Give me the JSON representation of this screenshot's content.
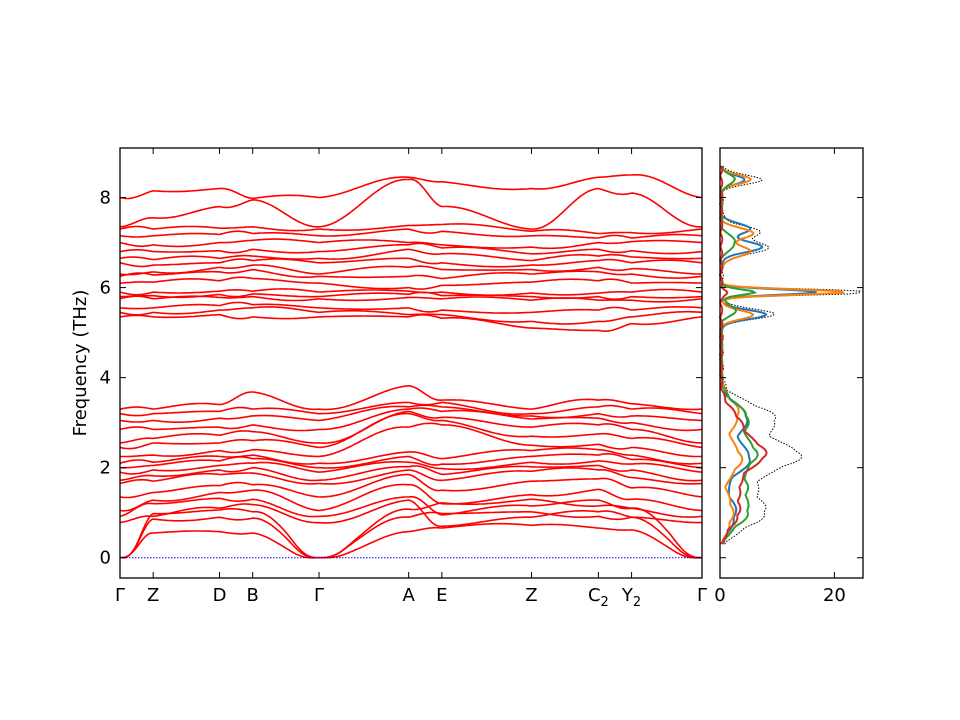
{
  "chart_data": [
    {
      "type": "line",
      "title": "",
      "xlabel": "",
      "ylabel": "Frequency (THz)",
      "ylim": [
        -0.45,
        9.1
      ],
      "y_ticks": [
        "0",
        "2",
        "4",
        "6",
        "8"
      ],
      "x_ticks": [
        {
          "label": "Γ",
          "x": 0.0
        },
        {
          "label": "Z",
          "x": 0.057
        },
        {
          "label": "D",
          "x": 0.171
        },
        {
          "label": "B",
          "x": 0.228
        },
        {
          "label": "Γ",
          "x": 0.342
        },
        {
          "label": "A",
          "x": 0.496
        },
        {
          "label": "E",
          "x": 0.553
        },
        {
          "label": "Z",
          "x": 0.707
        },
        {
          "label": "C",
          "sub": "2",
          "x": 0.822
        },
        {
          "label": "Y",
          "sub": "2",
          "x": 0.879
        },
        {
          "label": "Γ",
          "x": 1.0
        }
      ],
      "segments": [
        [
          0.0,
          0.342
        ],
        [
          0.342,
          1.0
        ]
      ],
      "series_color": "#ff0000",
      "zero_line_color": "#0000ff",
      "bands": [
        {
          "type": "acoustic",
          "gamma": 0.0,
          "mid": [
            0.55,
            0.58,
            0.55,
            0.56,
            0.58,
            0.66,
            0.72,
            0.66,
            0.62,
            0.6
          ]
        },
        {
          "type": "acoustic",
          "gamma": 0.0,
          "mid": [
            0.86,
            0.9,
            0.88,
            0.84,
            0.9,
            0.98,
            1.02,
            0.92,
            0.9,
            0.88
          ]
        },
        {
          "type": "acoustic",
          "gamma": 0.0,
          "mid": [
            0.98,
            1.06,
            1.02,
            0.95,
            1.08,
            1.22,
            1.3,
            1.15,
            1.1,
            1.05
          ]
        },
        {
          "type": "optic",
          "gamma": 0.78,
          "mid": [
            0.92,
            1.1,
            1.18,
            1.05,
            1.28,
            0.7,
            0.9,
            1.02,
            0.9,
            0.86
          ]
        },
        {
          "type": "optic",
          "gamma": 0.92,
          "mid": [
            1.2,
            1.32,
            1.3,
            1.12,
            1.35,
            0.95,
            1.15,
            1.28,
            1.1,
            1.05
          ]
        },
        {
          "type": "optic",
          "gamma": 1.05,
          "mid": [
            1.28,
            1.45,
            1.5,
            1.3,
            1.62,
            1.2,
            1.4,
            1.52,
            1.3,
            1.3
          ]
        },
        {
          "type": "optic",
          "gamma": 1.35,
          "mid": [
            1.45,
            1.6,
            1.62,
            1.48,
            1.85,
            1.5,
            1.7,
            1.75,
            1.55,
            1.52
          ]
        },
        {
          "type": "optic",
          "gamma": 1.65,
          "mid": [
            1.7,
            1.85,
            1.88,
            1.72,
            1.95,
            1.72,
            1.92,
            1.95,
            1.78,
            1.75
          ]
        },
        {
          "type": "optic",
          "gamma": 1.72,
          "mid": [
            1.82,
            1.95,
            2.0,
            1.88,
            2.02,
            1.85,
            2.02,
            2.05,
            1.95,
            1.92
          ]
        },
        {
          "type": "optic",
          "gamma": 1.9,
          "mid": [
            1.95,
            2.05,
            2.1,
            2.02,
            2.12,
            1.98,
            2.12,
            2.15,
            2.08,
            2.05
          ]
        },
        {
          "type": "optic",
          "gamma": 2.0,
          "mid": [
            2.05,
            2.15,
            2.2,
            2.15,
            2.25,
            2.08,
            2.25,
            2.28,
            2.18,
            2.15
          ]
        },
        {
          "type": "optic",
          "gamma": 2.1,
          "mid": [
            2.12,
            2.25,
            2.28,
            2.25,
            2.35,
            2.2,
            2.38,
            2.4,
            2.28,
            2.25
          ]
        },
        {
          "type": "optic",
          "gamma": 2.25,
          "mid": [
            2.28,
            2.38,
            2.4,
            2.35,
            2.9,
            2.95,
            2.5,
            2.52,
            2.45,
            2.42
          ]
        },
        {
          "type": "optic",
          "gamma": 2.45,
          "mid": [
            2.55,
            2.55,
            2.6,
            2.5,
            3.2,
            3.05,
            2.7,
            2.75,
            2.65,
            2.62
          ]
        },
        {
          "type": "optic",
          "gamma": 2.55,
          "mid": [
            2.65,
            2.72,
            2.8,
            2.75,
            3.25,
            3.12,
            2.9,
            2.95,
            2.85,
            2.8
          ]
        },
        {
          "type": "optic",
          "gamma": 2.85,
          "mid": [
            2.85,
            2.9,
            2.95,
            2.95,
            3.3,
            3.25,
            3.08,
            3.1,
            3.0,
            2.95
          ]
        },
        {
          "type": "optic",
          "gamma": 3.05,
          "mid": [
            3.05,
            3.1,
            3.15,
            3.12,
            3.35,
            3.35,
            3.15,
            3.2,
            3.15,
            3.1
          ]
        },
        {
          "type": "optic",
          "gamma": 3.2,
          "mid": [
            3.2,
            3.25,
            3.3,
            3.25,
            3.45,
            3.45,
            3.2,
            3.35,
            3.3,
            3.25
          ]
        },
        {
          "type": "optic",
          "gamma": 3.3,
          "mid": [
            3.3,
            3.4,
            3.68,
            3.4,
            3.82,
            3.5,
            3.3,
            3.5,
            3.42,
            3.35
          ]
        },
        {
          "type": "optic",
          "gamma": 5.35,
          "mid": [
            5.35,
            5.4,
            5.35,
            5.3,
            5.35,
            5.32,
            5.1,
            5.05,
            5.2,
            5.3
          ]
        },
        {
          "type": "optic",
          "gamma": 5.45,
          "mid": [
            5.45,
            5.5,
            5.55,
            5.45,
            5.4,
            5.4,
            5.25,
            5.25,
            5.35,
            5.4
          ]
        },
        {
          "type": "optic",
          "gamma": 5.55,
          "mid": [
            5.55,
            5.6,
            5.62,
            5.55,
            5.55,
            5.5,
            5.45,
            5.5,
            5.5,
            5.5
          ]
        },
        {
          "type": "optic",
          "gamma": 5.75,
          "mid": [
            5.75,
            5.78,
            5.8,
            5.75,
            5.78,
            5.75,
            5.72,
            5.72,
            5.72,
            5.75
          ]
        },
        {
          "type": "optic",
          "gamma": 5.8,
          "mid": [
            5.82,
            5.85,
            5.86,
            5.82,
            5.85,
            5.82,
            5.8,
            5.8,
            5.8,
            5.82
          ]
        },
        {
          "type": "optic",
          "gamma": 5.9,
          "mid": [
            5.9,
            5.92,
            5.92,
            5.9,
            5.92,
            5.9,
            5.88,
            5.88,
            5.9,
            5.9
          ]
        },
        {
          "type": "optic",
          "gamma": 6.1,
          "mid": [
            6.12,
            6.15,
            6.2,
            6.1,
            6.0,
            6.05,
            6.12,
            6.15,
            6.1,
            6.08
          ]
        },
        {
          "type": "optic",
          "gamma": 6.25,
          "mid": [
            6.28,
            6.35,
            6.4,
            6.3,
            6.25,
            6.2,
            6.3,
            6.35,
            6.3,
            6.28
          ]
        },
        {
          "type": "optic",
          "gamma": 6.3,
          "mid": [
            6.35,
            6.45,
            6.5,
            6.42,
            6.45,
            6.4,
            6.4,
            6.45,
            6.42,
            6.4
          ]
        },
        {
          "type": "optic",
          "gamma": 6.55,
          "mid": [
            6.5,
            6.55,
            6.6,
            6.55,
            6.65,
            6.55,
            6.5,
            6.6,
            6.55,
            6.55
          ]
        },
        {
          "type": "optic",
          "gamma": 6.65,
          "mid": [
            6.62,
            6.65,
            6.7,
            6.68,
            6.85,
            6.75,
            6.6,
            6.7,
            6.68,
            6.65
          ]
        },
        {
          "type": "optic",
          "gamma": 6.8,
          "mid": [
            6.8,
            6.82,
            6.85,
            6.85,
            6.95,
            6.88,
            6.75,
            6.85,
            6.82,
            6.8
          ]
        },
        {
          "type": "optic",
          "gamma": 7.0,
          "mid": [
            6.95,
            7.0,
            7.05,
            7.02,
            7.0,
            6.95,
            6.9,
            7.0,
            7.02,
            7.0
          ]
        },
        {
          "type": "optic",
          "gamma": 7.15,
          "mid": [
            7.15,
            7.18,
            7.2,
            7.2,
            7.3,
            7.25,
            7.15,
            7.1,
            7.1,
            7.12
          ]
        },
        {
          "type": "optic",
          "gamma": 7.3,
          "mid": [
            7.3,
            7.32,
            7.35,
            7.35,
            7.38,
            7.4,
            7.25,
            7.2,
            7.22,
            7.25
          ]
        },
        {
          "type": "optic",
          "gamma": 7.35,
          "mid": [
            7.55,
            7.8,
            7.95,
            7.5,
            8.4,
            7.8,
            7.3,
            8.2,
            8.1,
            7.8
          ]
        },
        {
          "type": "optic",
          "gamma": 8.0,
          "mid": [
            8.15,
            8.2,
            7.98,
            8.0,
            8.45,
            8.35,
            8.2,
            8.45,
            8.5,
            8.6
          ]
        }
      ]
    },
    {
      "type": "line",
      "title": "",
      "xlabel": "",
      "ylabel": "",
      "xlim": [
        0,
        25
      ],
      "ylim": [
        -0.45,
        9.1
      ],
      "x_ticks": [
        "0",
        "20"
      ],
      "total_color": "#000000",
      "series": [
        {
          "name": "",
          "color": "#1f77b4",
          "peaks": [
            [
              1.0,
              2.5,
              0.35
            ],
            [
              2.2,
              5.0,
              0.3
            ],
            [
              3.1,
              4.5,
              0.3
            ],
            [
              5.4,
              8.0,
              0.1
            ],
            [
              5.9,
              17.0,
              0.06
            ],
            [
              6.9,
              7.0,
              0.12
            ],
            [
              7.3,
              5.0,
              0.12
            ],
            [
              8.4,
              4.0,
              0.1
            ]
          ]
        },
        {
          "name": "",
          "color": "#ff7f0e",
          "peaks": [
            [
              1.0,
              2.0,
              0.35
            ],
            [
              2.2,
              3.5,
              0.3
            ],
            [
              3.2,
              3.0,
              0.3
            ],
            [
              5.4,
              5.5,
              0.1
            ],
            [
              5.9,
              22.0,
              0.06
            ],
            [
              6.8,
              5.0,
              0.12
            ],
            [
              7.2,
              5.5,
              0.12
            ],
            [
              8.4,
              5.0,
              0.1
            ]
          ]
        },
        {
          "name": "",
          "color": "#2ca02c",
          "peaks": [
            [
              1.0,
              4.5,
              0.3
            ],
            [
              1.6,
              3.5,
              0.25
            ],
            [
              2.3,
              6.0,
              0.3
            ],
            [
              3.1,
              4.5,
              0.3
            ],
            [
              5.5,
              2.5,
              0.12
            ],
            [
              5.9,
              6.0,
              0.06
            ],
            [
              7.0,
              2.5,
              0.15
            ],
            [
              8.4,
              2.5,
              0.1
            ]
          ]
        },
        {
          "name": "",
          "color": "#d62728",
          "peaks": [
            [
              1.0,
              3.0,
              0.3
            ],
            [
              1.6,
              2.5,
              0.25
            ],
            [
              2.3,
              7.5,
              0.3
            ],
            [
              3.0,
              3.0,
              0.3
            ],
            [
              5.9,
              1.0,
              0.06
            ]
          ]
        }
      ]
    }
  ]
}
